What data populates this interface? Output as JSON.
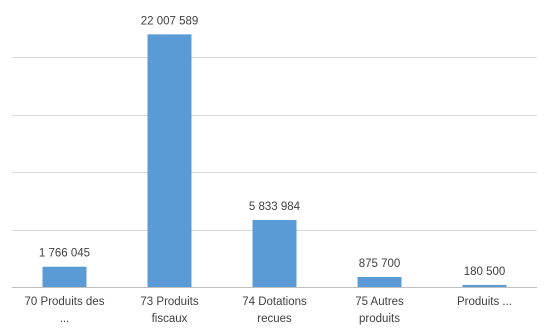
{
  "chart_data": {
    "type": "bar",
    "categories": [
      [
        "70 Produits des",
        "..."
      ],
      [
        "73 Produits",
        "fiscaux"
      ],
      [
        "74 Dotations",
        "recues"
      ],
      [
        "75 Autres",
        "produits"
      ],
      [
        "Produits ..."
      ]
    ],
    "values": [
      1766045,
      22007589,
      5833984,
      875700,
      180500
    ],
    "value_labels": [
      "1 766 045",
      "22 007 589",
      "5 833 984",
      "875 700",
      "180 500"
    ],
    "ylim": [
      0,
      25000000
    ],
    "grid": true,
    "legend": "none",
    "bar_color": "#5b9bd5"
  }
}
